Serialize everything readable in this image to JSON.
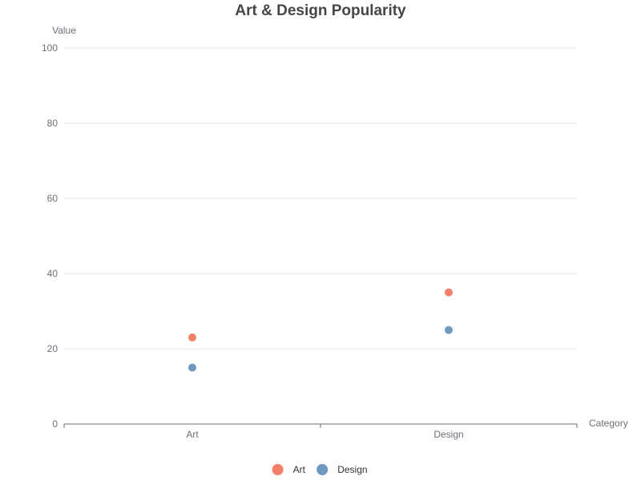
{
  "chart_data": {
    "type": "scatter",
    "title": "Art & Design Popularity",
    "xlabel": "Category",
    "ylabel": "Value",
    "categories": [
      "Art",
      "Design"
    ],
    "ylim": [
      0,
      100
    ],
    "yticks": [
      0,
      20,
      40,
      60,
      80,
      100
    ],
    "grid": true,
    "legend_position": "bottom-center",
    "series": [
      {
        "name": "Art",
        "color": "#f4806a",
        "values": [
          23,
          35
        ]
      },
      {
        "name": "Design",
        "color": "#6e99c1",
        "values": [
          15,
          25
        ]
      }
    ]
  }
}
